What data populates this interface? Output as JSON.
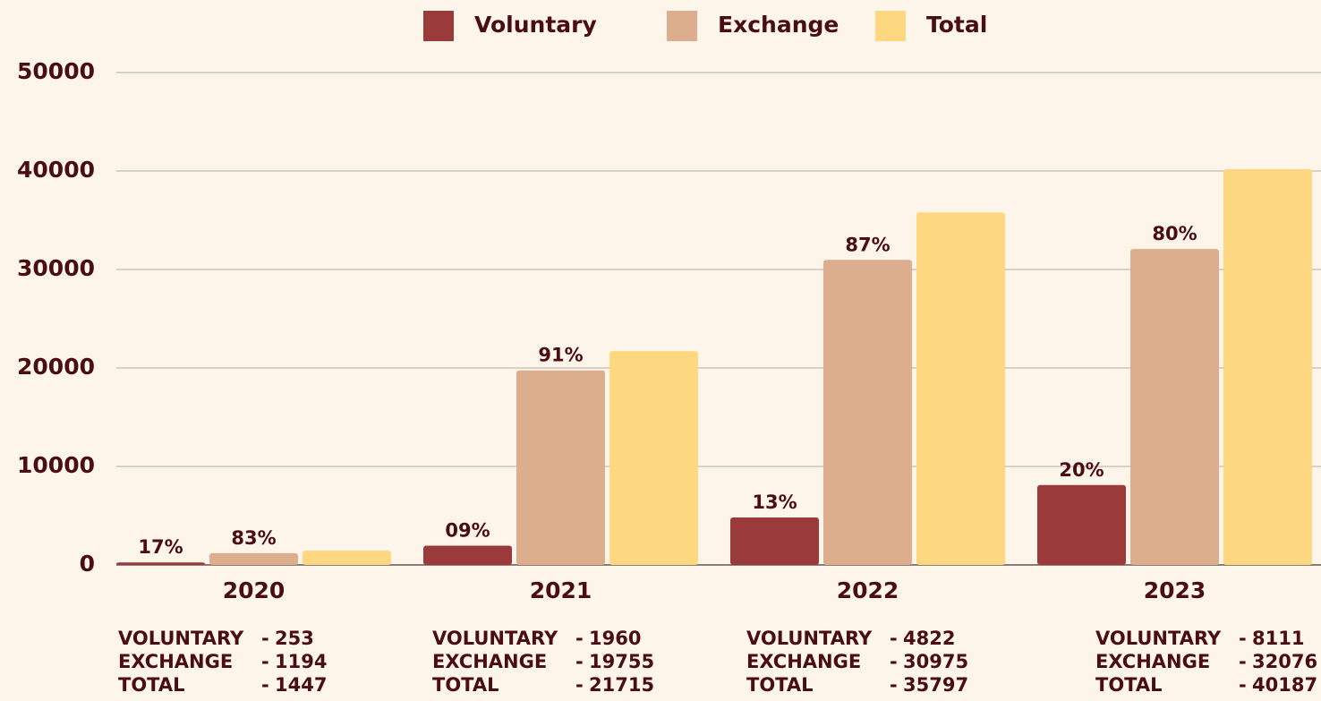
{
  "chart_data": {
    "type": "bar",
    "categories": [
      "2020",
      "2021",
      "2022",
      "2023"
    ],
    "series": [
      {
        "name": "Voluntary",
        "color": "#9b3a3b",
        "values": [
          253,
          1960,
          4822,
          8111
        ],
        "share_labels": [
          "17%",
          "09%",
          "13%",
          "20%"
        ]
      },
      {
        "name": "Exchange",
        "color": "#dcae8d",
        "values": [
          1194,
          19755,
          30975,
          32076
        ],
        "share_labels": [
          "83%",
          "91%",
          "87%",
          "80%"
        ]
      },
      {
        "name": "Total",
        "color": "#fed880",
        "values": [
          1447,
          21715,
          35797,
          40187
        ]
      }
    ],
    "summary_labels": [
      "VOLUNTARY",
      "EXCHANGE",
      "TOTAL"
    ],
    "separator": "-",
    "ylim": [
      0,
      50000
    ],
    "yticks": [
      0,
      10000,
      20000,
      30000,
      40000,
      50000
    ],
    "grid": true,
    "legend": "top"
  }
}
